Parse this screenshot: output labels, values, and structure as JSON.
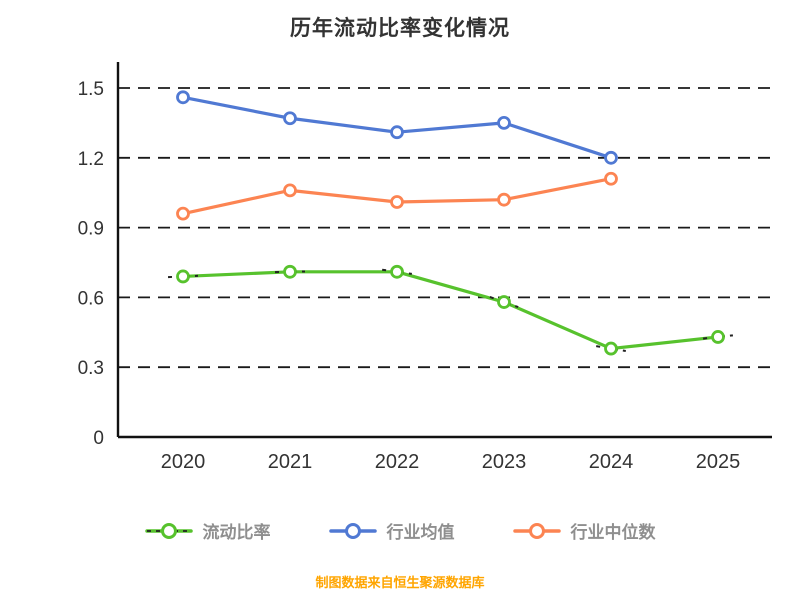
{
  "chart_data": {
    "type": "line",
    "title": "历年流动比率变化情况",
    "categories": [
      "2020",
      "2021",
      "2022",
      "2023",
      "2024",
      "2025"
    ],
    "y_ticks": [
      0,
      0.3,
      0.6,
      0.9,
      1.2,
      1.5
    ],
    "ylim": [
      0,
      1.5
    ],
    "grid": "horizontal-dashed",
    "legend_position": "bottom",
    "series": [
      {
        "name": "流动比率",
        "color": "#57C22D",
        "marker": "circle-white-fill",
        "dash_accent": true,
        "values": [
          0.69,
          0.71,
          0.71,
          0.58,
          0.38,
          0.43
        ]
      },
      {
        "name": "行业均值",
        "color": "#5079D3",
        "marker": "circle-white-fill",
        "dash_accent": false,
        "values": [
          1.46,
          1.37,
          1.31,
          1.35,
          1.2,
          null
        ]
      },
      {
        "name": "行业中位数",
        "color": "#FC8452",
        "marker": "circle-white-fill",
        "dash_accent": false,
        "values": [
          0.96,
          1.06,
          1.01,
          1.02,
          1.11,
          null
        ]
      }
    ],
    "footer_note": "制图数据来自恒生聚源数据库",
    "style": {
      "title_color": "#333333",
      "axis_color": "#111111",
      "grid_color": "#1a1a1a",
      "tick_color": "#333333",
      "legend_text_color": "#8f8f8f",
      "footer_color": "#FFA500",
      "dash_accent_color": "#222222",
      "background": "#ffffff"
    }
  }
}
